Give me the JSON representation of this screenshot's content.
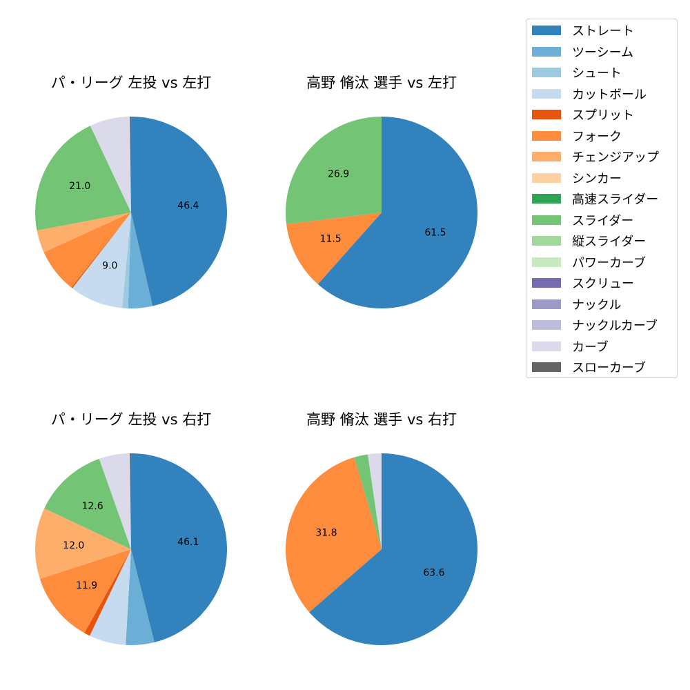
{
  "legend": {
    "items": [
      {
        "label": "ストレート",
        "color": "#3182bd"
      },
      {
        "label": "ツーシーム",
        "color": "#6baed6"
      },
      {
        "label": "シュート",
        "color": "#9ecae1"
      },
      {
        "label": "カットボール",
        "color": "#c6dbef"
      },
      {
        "label": "スプリット",
        "color": "#e6550d"
      },
      {
        "label": "フォーク",
        "color": "#fd8d3c"
      },
      {
        "label": "チェンジアップ",
        "color": "#fdae6b"
      },
      {
        "label": "シンカー",
        "color": "#fdd0a2"
      },
      {
        "label": "高速スライダー",
        "color": "#31a354"
      },
      {
        "label": "スライダー",
        "color": "#74c476"
      },
      {
        "label": "縦スライダー",
        "color": "#a1d99b"
      },
      {
        "label": "パワーカーブ",
        "color": "#c7e9c0"
      },
      {
        "label": "スクリュー",
        "color": "#756bb1"
      },
      {
        "label": "ナックル",
        "color": "#9e9ac8"
      },
      {
        "label": "ナックルカーブ",
        "color": "#bcbddc"
      },
      {
        "label": "カーブ",
        "color": "#dadaeb"
      },
      {
        "label": "スローカーブ",
        "color": "#636363"
      }
    ]
  },
  "panels": [
    {
      "title": "パ・リーグ 左投 vs 左打"
    },
    {
      "title": "高野 脩汰 選手 vs 左打"
    },
    {
      "title": "パ・リーグ 左投 vs 右打"
    },
    {
      "title": "高野 脩汰 選手 vs 右打"
    }
  ],
  "chart_data": [
    {
      "type": "pie",
      "title": "パ・リーグ 左投 vs 左打",
      "categories": [
        "ストレート",
        "ツーシーム",
        "シュート",
        "カットボール",
        "スプリット",
        "フォーク",
        "チェンジアップ",
        "スライダー",
        "カーブ",
        "スローカーブ"
      ],
      "values": [
        46.4,
        4.1,
        1.0,
        9.0,
        0.2,
        7.5,
        3.8,
        21.0,
        6.8,
        0.2
      ],
      "labels_shown": [
        "46.4",
        "",
        "",
        "9.0",
        "",
        "",
        "",
        "21.0",
        "",
        ""
      ]
    },
    {
      "type": "pie",
      "title": "高野 脩汰 選手 vs 左打",
      "categories": [
        "ストレート",
        "フォーク",
        "スライダー"
      ],
      "values": [
        61.5,
        11.5,
        26.9
      ],
      "labels_shown": [
        "61.5",
        "11.5",
        "26.9"
      ]
    },
    {
      "type": "pie",
      "title": "パ・リーグ 左投 vs 右打",
      "categories": [
        "ストレート",
        "ツーシーム",
        "カットボール",
        "スプリット",
        "フォーク",
        "チェンジアップ",
        "スライダー",
        "カーブ",
        "スローカーブ"
      ],
      "values": [
        46.1,
        4.8,
        6.2,
        1.0,
        11.9,
        12.0,
        12.6,
        5.2,
        0.2
      ],
      "labels_shown": [
        "46.1",
        "",
        "",
        "",
        "11.9",
        "12.0",
        "12.6",
        "",
        ""
      ]
    },
    {
      "type": "pie",
      "title": "高野 脩汰 選手 vs 右打",
      "categories": [
        "ストレート",
        "フォーク",
        "スライダー",
        "カーブ"
      ],
      "values": [
        63.6,
        31.8,
        2.3,
        2.3
      ],
      "labels_shown": [
        "63.6",
        "31.8",
        "",
        ""
      ]
    }
  ]
}
